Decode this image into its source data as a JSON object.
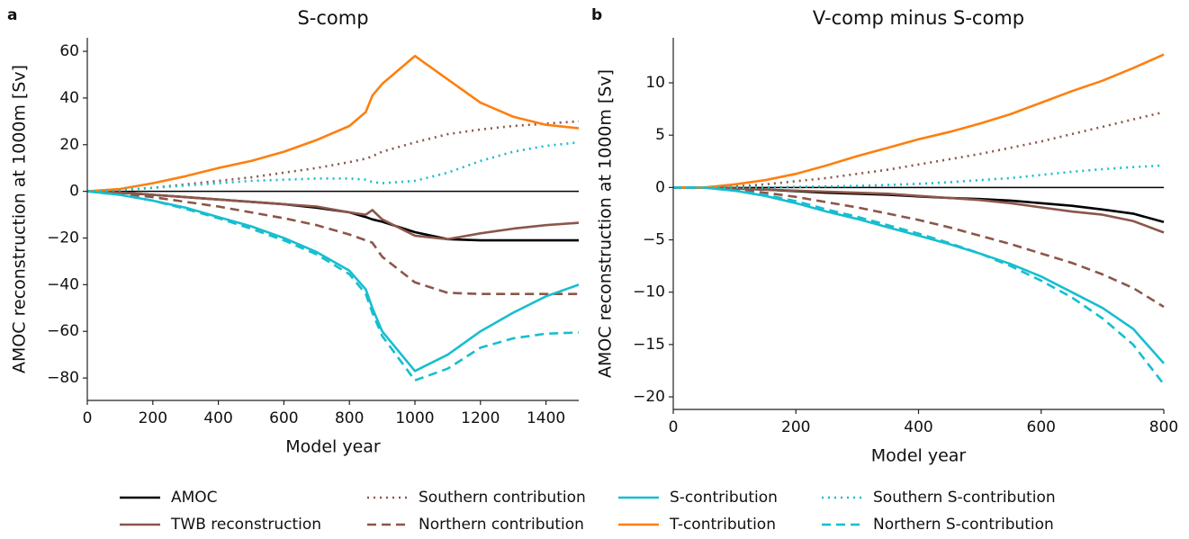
{
  "chart_data": [
    {
      "type": "line",
      "label": "a",
      "title": "S-comp",
      "xlabel": "Model year",
      "ylabel": "AMOC reconstruction at 1000m [Sv]",
      "x": [
        0,
        100,
        200,
        300,
        400,
        500,
        600,
        700,
        800,
        850,
        870,
        900,
        1000,
        1100,
        1200,
        1300,
        1400,
        1500
      ],
      "xlim": [
        0,
        1500
      ],
      "xticks": [
        0,
        200,
        400,
        600,
        800,
        1000,
        1200,
        1400
      ],
      "ylim": [
        -89.6,
        65.8
      ],
      "yticks": [
        {
          "value": -80,
          "label": "−80"
        },
        {
          "value": -60,
          "label": "−60"
        },
        {
          "value": -40,
          "label": "−40"
        },
        {
          "value": -20,
          "label": "−20"
        },
        0,
        20,
        40,
        60
      ],
      "series": [
        {
          "name": "AMOC",
          "color": "#000000",
          "dash": "solid",
          "values": [
            0,
            -0.5,
            -1.5,
            -2.5,
            -3.5,
            -4.5,
            -5.5,
            -7,
            -9,
            -11,
            -12,
            -13,
            -17.5,
            -20.5,
            -21,
            -21,
            -21,
            -21
          ]
        },
        {
          "name": "TWB reconstruction",
          "color": "#8c564b",
          "dash": "solid",
          "values": [
            0,
            -0.5,
            -1.5,
            -2.5,
            -3.5,
            -4.5,
            -5.5,
            -6.5,
            -9,
            -10,
            -8,
            -12,
            -19,
            -20.5,
            -18,
            -16,
            -14.5,
            -13.5
          ]
        },
        {
          "name": "Southern contribution",
          "color": "#8c564b",
          "dash": "dotted",
          "values": [
            0,
            0.5,
            1.5,
            3,
            4.5,
            6,
            8,
            10,
            12.5,
            14,
            15,
            17,
            21,
            24.5,
            26.5,
            28,
            29,
            30
          ]
        },
        {
          "name": "Northern contribution",
          "color": "#8c564b",
          "dash": "dashed",
          "values": [
            0,
            -1,
            -2.5,
            -4.5,
            -6.5,
            -9,
            -11.5,
            -14.5,
            -18.5,
            -21,
            -22,
            -28,
            -39,
            -43.5,
            -44,
            -44,
            -44,
            -44
          ]
        },
        {
          "name": "S-contribution",
          "color": "#17becf",
          "dash": "solid",
          "values": [
            0,
            -1.5,
            -4,
            -7,
            -11,
            -15,
            -20,
            -26,
            -34,
            -42,
            -50,
            -60,
            -77,
            -70,
            -60,
            -52,
            -45,
            -40
          ]
        },
        {
          "name": "T-contribution",
          "color": "#ff7f0e",
          "dash": "solid",
          "values": [
            0,
            1,
            3.5,
            6.5,
            10,
            13,
            17,
            22,
            28,
            34,
            41,
            46,
            58,
            48,
            38,
            32,
            28.5,
            27
          ]
        },
        {
          "name": "Southern S-contribution",
          "color": "#17becf",
          "dash": "dotted",
          "values": [
            0,
            0.5,
            1.5,
            2.5,
            3.5,
            4.5,
            5,
            5.5,
            5.5,
            5,
            4,
            3.5,
            4.5,
            8,
            13,
            17,
            19.5,
            21
          ]
        },
        {
          "name": "Northern S-contribution",
          "color": "#17becf",
          "dash": "dashed",
          "values": [
            0,
            -1.5,
            -4,
            -7.5,
            -11.5,
            -16,
            -21,
            -27,
            -35.5,
            -44,
            -52,
            -62,
            -81,
            -76,
            -67,
            -63,
            -61,
            -60.5
          ]
        }
      ]
    },
    {
      "type": "line",
      "label": "b",
      "title": "V-comp minus S-comp",
      "xlabel": "Model year",
      "ylabel": "AMOC reconstruction at 1000m [Sv]",
      "x": [
        0,
        50,
        100,
        150,
        200,
        250,
        300,
        350,
        400,
        450,
        500,
        550,
        600,
        650,
        700,
        750,
        800
      ],
      "xlim": [
        0,
        800
      ],
      "xticks": [
        0,
        200,
        400,
        600,
        800
      ],
      "ylim": [
        -21.2,
        14.3
      ],
      "yticks": [
        {
          "value": -20,
          "label": "−20"
        },
        {
          "value": -15,
          "label": "−15"
        },
        {
          "value": -10,
          "label": "−10"
        },
        {
          "value": -5,
          "label": "−5"
        },
        0,
        5,
        10
      ],
      "series": [
        {
          "color": "#000000",
          "dash": "solid",
          "values": [
            0,
            0,
            -0.1,
            -0.2,
            -0.35,
            -0.5,
            -0.6,
            -0.7,
            -0.85,
            -1,
            -1.1,
            -1.25,
            -1.5,
            -1.75,
            -2.1,
            -2.5,
            -3.3
          ]
        },
        {
          "color": "#8c564b",
          "dash": "solid",
          "values": [
            0,
            0,
            -0.1,
            -0.2,
            -0.3,
            -0.4,
            -0.5,
            -0.6,
            -0.8,
            -1,
            -1.2,
            -1.5,
            -1.9,
            -2.3,
            -2.6,
            -3.2,
            -4.3
          ]
        },
        {
          "color": "#8c564b",
          "dash": "dotted",
          "values": [
            0,
            0,
            0.1,
            0.3,
            0.6,
            0.9,
            1.3,
            1.7,
            2.2,
            2.7,
            3.2,
            3.8,
            4.4,
            5.1,
            5.8,
            6.5,
            7.2
          ]
        },
        {
          "color": "#8c564b",
          "dash": "dashed",
          "values": [
            0,
            0,
            -0.2,
            -0.5,
            -0.9,
            -1.4,
            -1.9,
            -2.5,
            -3.1,
            -3.8,
            -4.6,
            -5.4,
            -6.3,
            -7.2,
            -8.3,
            -9.6,
            -11.4
          ]
        },
        {
          "color": "#17becf",
          "dash": "solid",
          "values": [
            0,
            0,
            -0.3,
            -0.8,
            -1.5,
            -2.3,
            -3,
            -3.8,
            -4.6,
            -5.4,
            -6.3,
            -7.3,
            -8.5,
            -10,
            -11.5,
            -13.5,
            -16.8
          ]
        },
        {
          "color": "#ff7f0e",
          "dash": "solid",
          "values": [
            0,
            0,
            0.3,
            0.7,
            1.3,
            2.1,
            3,
            3.8,
            4.6,
            5.3,
            6.1,
            7,
            8.1,
            9.2,
            10.2,
            11.4,
            12.7
          ]
        },
        {
          "color": "#17becf",
          "dash": "dotted",
          "values": [
            0,
            0,
            0,
            0,
            0.05,
            0.1,
            0.15,
            0.25,
            0.35,
            0.5,
            0.7,
            0.9,
            1.2,
            1.5,
            1.75,
            1.95,
            2.1
          ]
        },
        {
          "color": "#17becf",
          "dash": "dashed",
          "values": [
            0,
            0,
            -0.3,
            -0.7,
            -1.3,
            -2.1,
            -2.8,
            -3.6,
            -4.4,
            -5.3,
            -6.3,
            -7.5,
            -8.9,
            -10.5,
            -12.5,
            -15,
            -18.8
          ]
        }
      ]
    }
  ]
}
